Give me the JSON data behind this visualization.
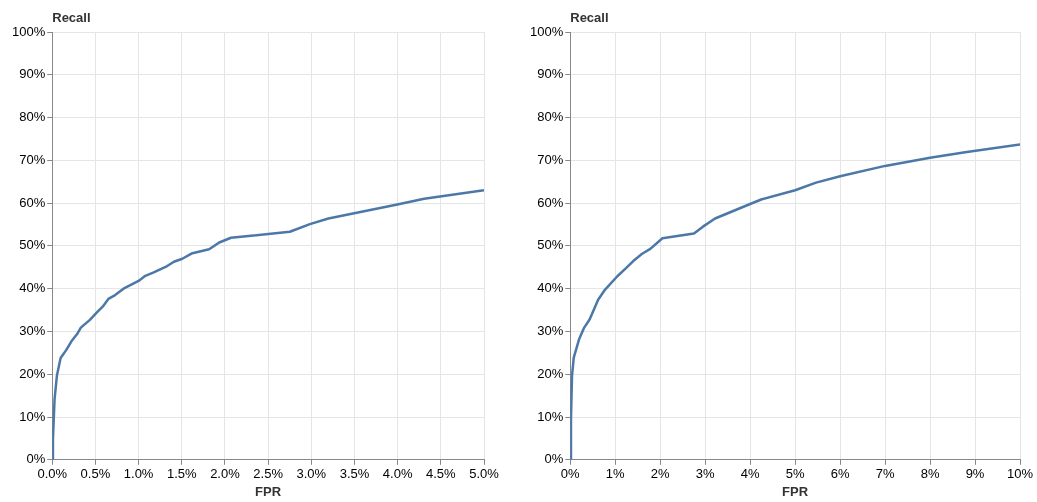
{
  "chart_data": [
    {
      "type": "line",
      "xlabel": "FPR",
      "ylabel": "Recall",
      "color": "#4c78a8",
      "grid": true,
      "x": [
        0,
        0.008,
        0.027,
        0.054,
        0.097,
        0.163,
        0.222,
        0.288,
        0.331,
        0.436,
        0.514,
        0.584,
        0.65,
        0.728,
        0.825,
        1.0,
        1.078,
        1.175,
        1.331,
        1.409,
        1.506,
        1.623,
        1.817,
        1.934,
        2.07,
        2.751,
        2.984,
        3.198,
        3.996,
        4.307,
        5.0
      ],
      "values": [
        0,
        4.9,
        14.2,
        19.7,
        23.8,
        25.7,
        27.7,
        29.4,
        30.9,
        32.7,
        34.4,
        35.8,
        37.6,
        38.5,
        40.0,
        41.8,
        43.0,
        43.8,
        45.3,
        46.3,
        47.0,
        48.3,
        49.2,
        50.8,
        51.9,
        53.3,
        55.1,
        56.4,
        59.7,
        61.0,
        63.0
      ],
      "xlim": [
        0,
        5
      ],
      "xticks": [
        {
          "value": 0,
          "label": "0.0%"
        },
        {
          "value": 0.5,
          "label": "0.5%"
        },
        {
          "value": 1,
          "label": "1.0%"
        },
        {
          "value": 1.5,
          "label": "1.5%"
        },
        {
          "value": 2,
          "label": "2.0%"
        },
        {
          "value": 2.5,
          "label": "2.5%"
        },
        {
          "value": 3,
          "label": "3.0%"
        },
        {
          "value": 3.5,
          "label": "3.5%"
        },
        {
          "value": 4,
          "label": "4.0%"
        },
        {
          "value": 4.5,
          "label": "4.5%"
        },
        {
          "value": 5,
          "label": "5.0%"
        }
      ],
      "ylim": [
        0,
        100
      ],
      "yticks": [
        {
          "value": 0,
          "label": "0%"
        },
        {
          "value": 10,
          "label": "10%"
        },
        {
          "value": 20,
          "label": "20%"
        },
        {
          "value": 30,
          "label": "30%"
        },
        {
          "value": 40,
          "label": "40%"
        },
        {
          "value": 50,
          "label": "50%"
        },
        {
          "value": 60,
          "label": "60%"
        },
        {
          "value": 70,
          "label": "70%"
        },
        {
          "value": 80,
          "label": "80%"
        },
        {
          "value": 90,
          "label": "90%"
        },
        {
          "value": 100,
          "label": "100%"
        }
      ]
    },
    {
      "type": "line",
      "xlabel": "FPR",
      "ylabel": "Recall",
      "color": "#4c78a8",
      "grid": true,
      "x": [
        0,
        0.016,
        0.039,
        0.078,
        0.194,
        0.31,
        0.43,
        0.62,
        0.775,
        1.047,
        1.24,
        1.395,
        1.59,
        1.78,
        2.05,
        2.75,
        2.95,
        3.22,
        4.0,
        4.26,
        5.0,
        5.465,
        6.0,
        7.0,
        8.0,
        8.78,
        10.0
      ],
      "values": [
        0,
        9.5,
        19.6,
        23.9,
        28.1,
        30.9,
        32.8,
        37.4,
        39.8,
        42.9,
        44.8,
        46.4,
        48.1,
        49.3,
        51.8,
        52.9,
        54.5,
        56.4,
        59.8,
        60.9,
        63.0,
        64.8,
        66.3,
        68.7,
        70.6,
        71.9,
        73.7
      ],
      "xlim": [
        0,
        10
      ],
      "xticks": [
        {
          "value": 0,
          "label": "0%"
        },
        {
          "value": 1,
          "label": "1%"
        },
        {
          "value": 2,
          "label": "2%"
        },
        {
          "value": 3,
          "label": "3%"
        },
        {
          "value": 4,
          "label": "4%"
        },
        {
          "value": 5,
          "label": "5%"
        },
        {
          "value": 6,
          "label": "6%"
        },
        {
          "value": 7,
          "label": "7%"
        },
        {
          "value": 8,
          "label": "8%"
        },
        {
          "value": 9,
          "label": "9%"
        },
        {
          "value": 10,
          "label": "10%"
        }
      ],
      "ylim": [
        0,
        100
      ],
      "yticks": [
        {
          "value": 0,
          "label": "0%"
        },
        {
          "value": 10,
          "label": "10%"
        },
        {
          "value": 20,
          "label": "20%"
        },
        {
          "value": 30,
          "label": "30%"
        },
        {
          "value": 40,
          "label": "40%"
        },
        {
          "value": 50,
          "label": "50%"
        },
        {
          "value": 60,
          "label": "60%"
        },
        {
          "value": 70,
          "label": "70%"
        },
        {
          "value": 80,
          "label": "80%"
        },
        {
          "value": 90,
          "label": "90%"
        },
        {
          "value": 100,
          "label": "100%"
        }
      ]
    }
  ]
}
